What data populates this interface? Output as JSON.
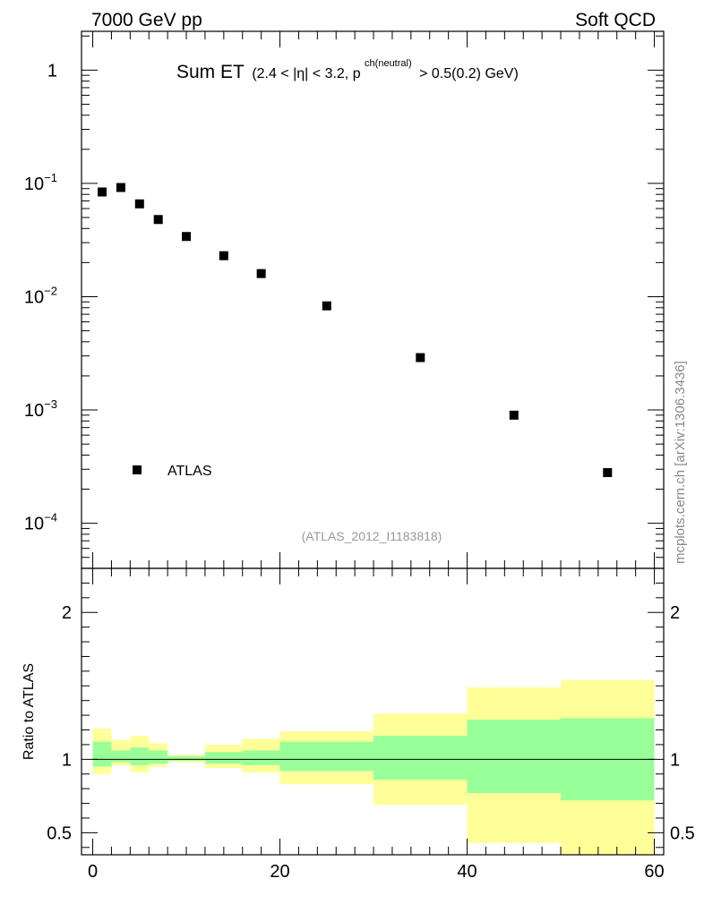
{
  "header": {
    "left": "7000 GeV pp",
    "right": "Soft QCD"
  },
  "watermark": "mcplots.cern.ch [arXiv:1306.3436]",
  "analysis_ref": "(ATLAS_2012_I1183818)",
  "title": {
    "main": "Sum ET",
    "cond_part1": "(2.4 < |η| < 3.2, p",
    "sup": "ch(neutral)",
    "cond_part2": "> 0.5(0.2) GeV)"
  },
  "legend": {
    "label": "ATLAS",
    "position": "lower-left"
  },
  "colors": {
    "marker": "#000000",
    "band_outer": "#ffff99",
    "band_inner": "#99ff99",
    "ref_line": "#000000"
  },
  "chart_data": [
    {
      "type": "scatter",
      "panel": "main",
      "yscale": "log",
      "xlim": [
        -1.2,
        61
      ],
      "ylim": [
        4e-05,
        2.2
      ],
      "yticks": [
        {
          "value": 1,
          "base": "1",
          "exp": ""
        },
        {
          "value": 0.1,
          "base": "10",
          "exp": "−1"
        },
        {
          "value": 0.01,
          "base": "10",
          "exp": "−2"
        },
        {
          "value": 0.001,
          "base": "10",
          "exp": "−3"
        },
        {
          "value": 0.0001,
          "base": "10",
          "exp": "−4"
        }
      ],
      "series": [
        {
          "name": "ATLAS",
          "x": [
            1,
            3,
            5,
            7,
            10,
            14,
            18,
            25,
            35,
            45,
            55
          ],
          "y": [
            0.084,
            0.092,
            0.066,
            0.048,
            0.034,
            0.023,
            0.016,
            0.0083,
            0.0029,
            0.0009,
            0.00028
          ]
        }
      ]
    },
    {
      "type": "area",
      "panel": "ratio",
      "ylabel": "Ratio to ATLAS",
      "xlim": [
        -1.2,
        61
      ],
      "ylim": [
        0.35,
        2.3
      ],
      "xticks": [
        0,
        20,
        40,
        60
      ],
      "yticks": [
        0.5,
        1,
        2
      ],
      "bins": [
        {
          "x0": 0,
          "x1": 2,
          "outer": [
            0.9,
            1.21
          ],
          "inner": [
            0.95,
            1.12
          ]
        },
        {
          "x0": 2,
          "x1": 4,
          "outer": [
            0.96,
            1.13
          ],
          "inner": [
            0.98,
            1.06
          ]
        },
        {
          "x0": 4,
          "x1": 6,
          "outer": [
            0.91,
            1.16
          ],
          "inner": [
            0.96,
            1.08
          ]
        },
        {
          "x0": 6,
          "x1": 8,
          "outer": [
            0.95,
            1.11
          ],
          "inner": [
            0.97,
            1.06
          ]
        },
        {
          "x0": 8,
          "x1": 12,
          "outer": [
            0.98,
            1.03
          ],
          "inner": [
            0.99,
            1.02
          ]
        },
        {
          "x0": 12,
          "x1": 16,
          "outer": [
            0.94,
            1.1
          ],
          "inner": [
            0.97,
            1.05
          ]
        },
        {
          "x0": 16,
          "x1": 20,
          "outer": [
            0.91,
            1.14
          ],
          "inner": [
            0.96,
            1.06
          ]
        },
        {
          "x0": 20,
          "x1": 30,
          "outer": [
            0.83,
            1.19
          ],
          "inner": [
            0.92,
            1.12
          ]
        },
        {
          "x0": 30,
          "x1": 40,
          "outer": [
            0.69,
            1.31
          ],
          "inner": [
            0.86,
            1.16
          ]
        },
        {
          "x0": 40,
          "x1": 50,
          "outer": [
            0.43,
            1.49
          ],
          "inner": [
            0.77,
            1.27
          ]
        },
        {
          "x0": 50,
          "x1": 60,
          "outer": [
            0.3,
            1.54
          ],
          "inner": [
            0.72,
            1.28
          ]
        }
      ],
      "reference_line": 1
    }
  ]
}
